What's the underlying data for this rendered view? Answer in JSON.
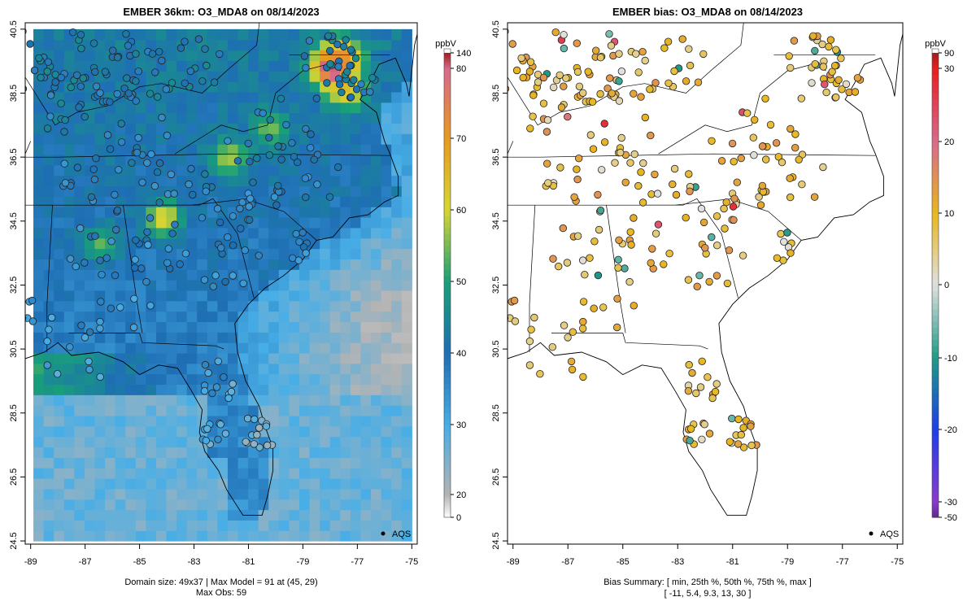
{
  "chart_data": [
    {
      "type": "heatmap",
      "title": "EMBER 36km: O3_MDA8 on 08/14/2023",
      "x_ticks": [
        "-89",
        "-87",
        "-85",
        "-83",
        "-81",
        "-79",
        "-77",
        "-75"
      ],
      "y_ticks": [
        "40.5",
        "38.5",
        "36.5",
        "34.5",
        "32.5",
        "30.5",
        "28.5",
        "26.5",
        "24.5"
      ],
      "xlim": [
        -89.2,
        -74.8
      ],
      "ylim": [
        24.4,
        40.7
      ],
      "colorbar": {
        "unit": "ppbV",
        "tick_labels": [
          "140",
          "80",
          "70",
          "60",
          "50",
          "40",
          "30",
          "20",
          "0"
        ],
        "stops": [
          {
            "label": "0",
            "color": "#ffffff"
          },
          {
            "label": "20",
            "color": "#b4b4b4"
          },
          {
            "label": "30",
            "color": "#48aee6"
          },
          {
            "label": "40",
            "color": "#1e6eb4"
          },
          {
            "label": "50",
            "color": "#18a078"
          },
          {
            "label": "60",
            "color": "#d6d632"
          },
          {
            "label": "70",
            "color": "#e89a1e"
          },
          {
            "label": "80",
            "color": "#d86a8c"
          },
          {
            "label": "140",
            "color": "#a41e1e"
          }
        ]
      },
      "legend": {
        "label": "AQS",
        "position": "bottom-right"
      },
      "footer": [
        "Domain size: 49x37 | Max Model = 91 at (45, 29)",
        "Max Obs: 59"
      ],
      "hotspots": [
        {
          "lon": -77.9,
          "lat": 39.3,
          "value": 91
        },
        {
          "lon": -77.6,
          "lat": 39.6,
          "value": 72
        },
        {
          "lon": -77.4,
          "lat": 38.6,
          "value": 65
        },
        {
          "lon": -84.1,
          "lat": 34.6,
          "value": 62
        },
        {
          "lon": -81.7,
          "lat": 36.5,
          "value": 58
        },
        {
          "lon": -80.2,
          "lat": 37.4,
          "value": 55
        },
        {
          "lon": -86.4,
          "lat": 33.8,
          "value": 54
        }
      ]
    },
    {
      "type": "scatter",
      "title": "EMBER bias: O3_MDA8 on 08/14/2023",
      "x_ticks": [
        "-89",
        "-87",
        "-85",
        "-83",
        "-81",
        "-79",
        "-77",
        "-75"
      ],
      "y_ticks": [
        "40.5",
        "38.5",
        "36.5",
        "34.5",
        "32.5",
        "30.5",
        "28.5",
        "26.5",
        "24.5"
      ],
      "xlim": [
        -89.2,
        -74.8
      ],
      "ylim": [
        24.4,
        40.7
      ],
      "colorbar": {
        "unit": "ppbV",
        "tick_labels": [
          "90",
          "30",
          "20",
          "10",
          "0",
          "-10",
          "-20",
          "-30",
          "-50"
        ],
        "stops": [
          {
            "label": "-50",
            "color": "#5a2a86"
          },
          {
            "label": "-30",
            "color": "#8a3acd"
          },
          {
            "label": "-20",
            "color": "#1e3ee8"
          },
          {
            "label": "-10",
            "color": "#1e9a86"
          },
          {
            "label": "0",
            "color": "#e0e0e0"
          },
          {
            "label": "10",
            "color": "#e8b81e"
          },
          {
            "label": "20",
            "color": "#d86a8c"
          },
          {
            "label": "30",
            "color": "#e81e1e"
          },
          {
            "label": "90",
            "color": "#a41e1e"
          }
        ]
      },
      "legend": {
        "label": "AQS",
        "position": "bottom-right"
      },
      "bias_summary": {
        "min": -11,
        "p25": 5.4,
        "median": 9.3,
        "p75": 13,
        "max": 30
      },
      "footer": [
        "Bias Summary: [ min, 25th %, 50th %, 75th %, max ]",
        "[ -11,   5.4,   9.3,   13,   30 ]"
      ]
    }
  ]
}
